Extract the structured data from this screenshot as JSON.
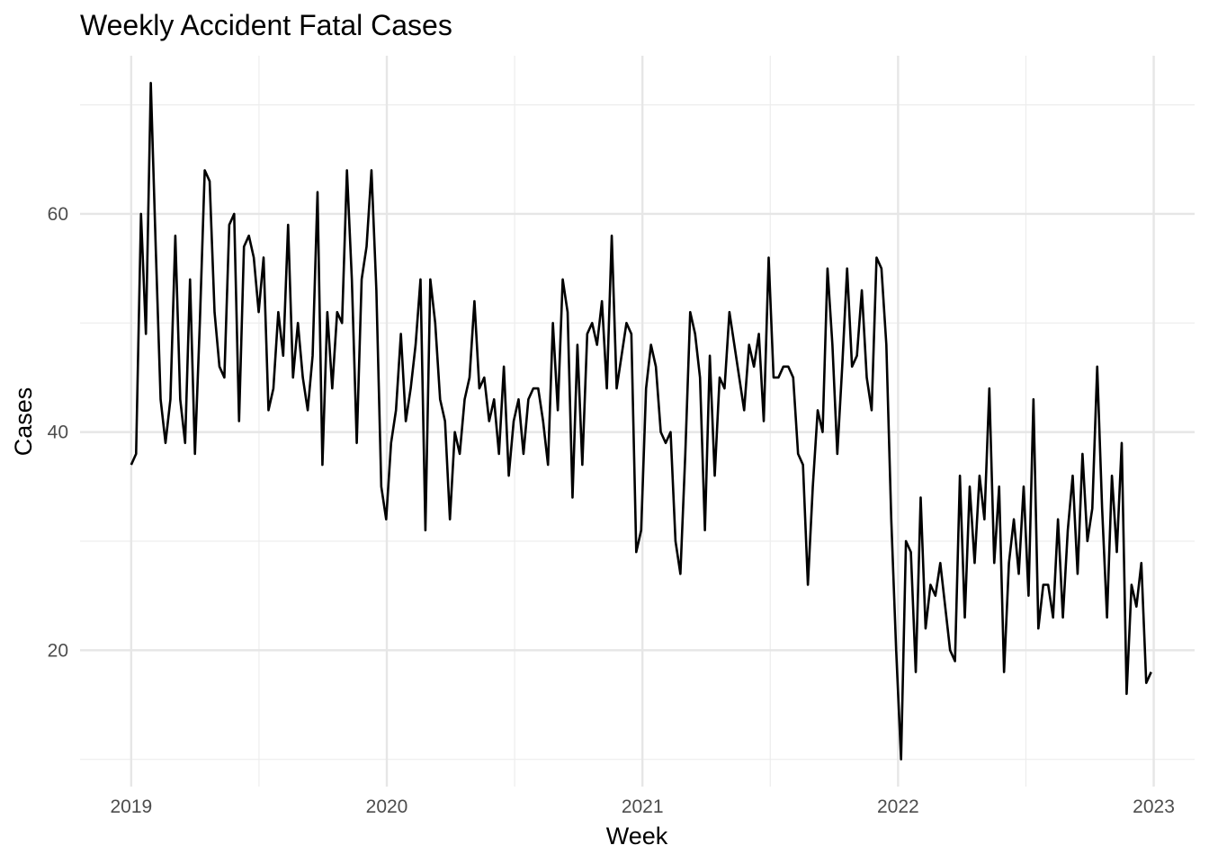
{
  "chart_data": {
    "type": "line",
    "title": "Weekly Accident Fatal Cases",
    "xlabel": "Week",
    "ylabel": "Cases",
    "x_ticks": [
      {
        "label": "2019",
        "value": 2019.0
      },
      {
        "label": "2020",
        "value": 2020.0
      },
      {
        "label": "2021",
        "value": 2021.0
      },
      {
        "label": "2022",
        "value": 2022.0
      },
      {
        "label": "2023",
        "value": 2023.0
      }
    ],
    "y_ticks": [
      {
        "label": "20",
        "value": 20
      },
      {
        "label": "40",
        "value": 40
      },
      {
        "label": "60",
        "value": 60
      }
    ],
    "xlim": [
      2018.8,
      2023.16
    ],
    "ylim": [
      7.5,
      74.5
    ],
    "grid": true,
    "legend": "none",
    "series": [
      {
        "color": "#000000",
        "x_start": 2019.0,
        "x_end": 2022.99,
        "values": [
          37,
          38,
          60,
          49,
          72,
          57,
          43,
          39,
          43,
          58,
          43,
          39,
          54,
          38,
          50,
          64,
          63,
          51,
          46,
          45,
          59,
          60,
          41,
          57,
          58,
          56,
          51,
          56,
          42,
          44,
          51,
          47,
          59,
          45,
          50,
          45,
          42,
          47,
          62,
          37,
          51,
          44,
          51,
          50,
          64,
          54,
          39,
          54,
          57,
          64,
          53,
          35,
          32,
          39,
          42,
          49,
          41,
          44,
          48,
          54,
          31,
          54,
          50,
          43,
          41,
          32,
          40,
          38,
          43,
          45,
          52,
          44,
          45,
          41,
          43,
          38,
          46,
          36,
          41,
          43,
          38,
          43,
          44,
          44,
          41,
          37,
          50,
          42,
          54,
          51,
          34,
          48,
          37,
          49,
          50,
          48,
          52,
          44,
          58,
          44,
          47,
          50,
          49,
          29,
          31,
          44,
          48,
          46,
          40,
          39,
          40,
          30,
          27,
          38,
          51,
          49,
          45,
          31,
          47,
          36,
          45,
          44,
          51,
          48,
          45,
          42,
          48,
          46,
          49,
          41,
          56,
          45,
          45,
          46,
          46,
          45,
          38,
          37,
          26,
          35,
          42,
          40,
          55,
          48,
          38,
          46,
          55,
          46,
          47,
          53,
          45,
          42,
          56,
          55,
          48,
          32,
          20,
          10,
          30,
          29,
          18,
          34,
          22,
          26,
          25,
          28,
          24,
          20,
          19,
          36,
          23,
          35,
          28,
          36,
          32,
          44,
          28,
          35,
          18,
          28,
          32,
          27,
          35,
          25,
          43,
          22,
          26,
          26,
          23,
          32,
          23,
          31,
          36,
          27,
          38,
          30,
          33,
          46,
          33,
          23,
          36,
          29,
          39,
          16,
          26,
          24,
          28,
          17,
          18
        ]
      }
    ]
  }
}
